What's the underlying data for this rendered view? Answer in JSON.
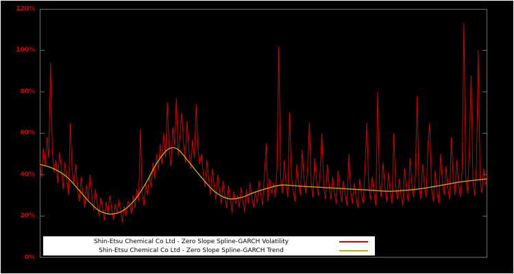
{
  "chart_data": {
    "type": "line",
    "title": "",
    "xlabel": "",
    "ylabel": "",
    "ylim": [
      0,
      120
    ],
    "y_unit": "percent",
    "y_tick_values": [
      0,
      20,
      40,
      60,
      80,
      100,
      120
    ],
    "y_ticks": [
      "0%",
      "20%",
      "40%",
      "60%",
      "80%",
      "100%",
      "120%"
    ],
    "x_tick_labels": [],
    "grid": false,
    "background": "#000000",
    "frame_color": "#6f6f6f",
    "tick_label_color": "#d40000",
    "legend_position": "bottom-center",
    "legend_background": "#ffffff",
    "series": [
      {
        "name": "Shin-Etsu Chemical Co Ltd - Zero Slope Spline-GARCH Volatility",
        "color": "#d40000",
        "type": "line",
        "x_range": [
          0,
          1
        ],
        "values": [
          46,
          39,
          53,
          44,
          58,
          48,
          94,
          52,
          41,
          47,
          36,
          51,
          43,
          33,
          46,
          38,
          30,
          65,
          42,
          35,
          45,
          33,
          27,
          39,
          31,
          24,
          35,
          28,
          40,
          30,
          23,
          33,
          26,
          20,
          29,
          24,
          18,
          27,
          21,
          30,
          24,
          18,
          26,
          21,
          28,
          23,
          17,
          25,
          20,
          27,
          26,
          21,
          30,
          24,
          33,
          27,
          62,
          31,
          25,
          36,
          30,
          40,
          34,
          46,
          38,
          50,
          42,
          55,
          45,
          60,
          48,
          75,
          52,
          44,
          63,
          54,
          77,
          49,
          58,
          70,
          55,
          46,
          66,
          51,
          43,
          57,
          48,
          74,
          53,
          45,
          50,
          40,
          34,
          47,
          38,
          30,
          43,
          35,
          28,
          40,
          33,
          26,
          37,
          30,
          24,
          35,
          28,
          22,
          32,
          26,
          30,
          24,
          34,
          27,
          22,
          33,
          26,
          36,
          29,
          24,
          32,
          26,
          37,
          30,
          25,
          40,
          55,
          27,
          38,
          31,
          36,
          29,
          44,
          102,
          38,
          31,
          47,
          36,
          29,
          70,
          40,
          32,
          27,
          45,
          36,
          30,
          52,
          38,
          31,
          43,
          65,
          36,
          29,
          48,
          37,
          30,
          42,
          60,
          34,
          28,
          45,
          35,
          28,
          39,
          31,
          26,
          42,
          33,
          27,
          37,
          30,
          25,
          50,
          32,
          26,
          36,
          29,
          24,
          38,
          30,
          26,
          44,
          65,
          35,
          28,
          39,
          31,
          25,
          80,
          36,
          29,
          46,
          34,
          27,
          41,
          32,
          26,
          60,
          35,
          28,
          38,
          30,
          25,
          43,
          33,
          27,
          48,
          36,
          29,
          40,
          78,
          34,
          28,
          45,
          35,
          29,
          55,
          65,
          33,
          27,
          42,
          32,
          26,
          50,
          37,
          30,
          44,
          34,
          28,
          58,
          38,
          30,
          47,
          36,
          29,
          42,
          113,
          39,
          31,
          52,
          88,
          37,
          30,
          45,
          100,
          38,
          31,
          43,
          35,
          39
        ]
      },
      {
        "name": "Shin-Etsu Chemical Co Ltd - Zero Slope Spline-GARCH Trend",
        "color": "#c0b000",
        "type": "smooth-line",
        "points": [
          [
            0.0,
            45
          ],
          [
            0.03,
            43
          ],
          [
            0.06,
            39
          ],
          [
            0.09,
            32
          ],
          [
            0.11,
            27
          ],
          [
            0.13,
            23
          ],
          [
            0.145,
            21.5
          ],
          [
            0.16,
            21
          ],
          [
            0.18,
            22
          ],
          [
            0.2,
            25
          ],
          [
            0.22,
            30
          ],
          [
            0.24,
            37
          ],
          [
            0.26,
            45
          ],
          [
            0.28,
            51
          ],
          [
            0.295,
            53
          ],
          [
            0.31,
            52
          ],
          [
            0.33,
            47
          ],
          [
            0.36,
            39
          ],
          [
            0.39,
            32
          ],
          [
            0.42,
            28.5
          ],
          [
            0.45,
            29
          ],
          [
            0.48,
            31.5
          ],
          [
            0.51,
            33.5
          ],
          [
            0.54,
            35
          ],
          [
            0.58,
            34.5
          ],
          [
            0.62,
            34
          ],
          [
            0.66,
            33.5
          ],
          [
            0.7,
            33
          ],
          [
            0.74,
            32.5
          ],
          [
            0.78,
            32
          ],
          [
            0.82,
            32.5
          ],
          [
            0.86,
            33.5
          ],
          [
            0.9,
            35
          ],
          [
            0.94,
            36.5
          ],
          [
            1.0,
            38
          ]
        ]
      }
    ]
  }
}
